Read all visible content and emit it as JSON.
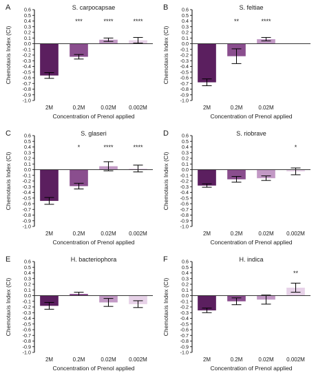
{
  "colors": {
    "bar_dark": "#5b1f5f",
    "bar_mid": "#8a4e8e",
    "bar_light": "#c299c5",
    "bar_pale": "#e7d2e8",
    "axis": "#000000",
    "zero_line": "#333333"
  },
  "chart_data": [
    {
      "type": "bar",
      "panel_letter": "A",
      "title": "S. carpocapsae",
      "xlabel": "Concentration of Prenol applied",
      "ylabel": "Chemotaxis Index (CI)",
      "ylim": [
        -1.0,
        0.6
      ],
      "yticks": [
        "0.6",
        "0.5",
        "0.4",
        "0.3",
        "0.2",
        "0.1",
        "0.0",
        "-0.1",
        "-0.2",
        "-0.3",
        "-0.4",
        "-0.5",
        "-0.6",
        "-0.7",
        "-0.8",
        "-0.9",
        "-1.0"
      ],
      "categories": [
        "2M",
        "0.2M",
        "0.02M",
        "0.002M"
      ],
      "values": [
        -0.56,
        -0.23,
        0.07,
        0.06
      ],
      "errors": [
        0.05,
        0.04,
        0.03,
        0.05
      ],
      "significance": [
        "",
        "***",
        "****",
        "****"
      ]
    },
    {
      "type": "bar",
      "panel_letter": "B",
      "title": "S. feltiae",
      "xlabel": "Concentration of Prenol applied",
      "ylabel": "Chemotaxis Index (CI)",
      "ylim": [
        -1.0,
        0.6
      ],
      "yticks": [
        "0.6",
        "0.5",
        "0.4",
        "0.3",
        "0.2",
        "0.1",
        "0.0",
        "-0.1",
        "-0.2",
        "-0.3",
        "-0.4",
        "-0.5",
        "-0.6",
        "-0.7",
        "-0.8",
        "-0.9",
        "-1.0"
      ],
      "categories": [
        "2M",
        "0.2M",
        "0.02M"
      ],
      "values": [
        -0.68,
        -0.22,
        0.08
      ],
      "errors": [
        0.06,
        0.13,
        0.03
      ],
      "significance": [
        "",
        "**",
        "****"
      ]
    },
    {
      "type": "bar",
      "panel_letter": "C",
      "title": "S. glaseri",
      "xlabel": "Concentration of Prenol applied",
      "ylabel": "Chemotaxis Index (CI)",
      "ylim": [
        -1.0,
        0.6
      ],
      "yticks": [
        "0.6",
        "0.5",
        "0.4",
        "0.3",
        "0.2",
        "0.1",
        "0.0",
        "-0.1",
        "-0.2",
        "-0.3",
        "-0.4",
        "-0.5",
        "-0.6",
        "-0.7",
        "-0.8",
        "-0.9",
        "-1.0"
      ],
      "categories": [
        "2M",
        "0.2M",
        "0.02M",
        "0.002M"
      ],
      "values": [
        -0.55,
        -0.29,
        0.06,
        0.02
      ],
      "errors": [
        0.06,
        0.05,
        0.08,
        0.06
      ],
      "significance": [
        "",
        "*",
        "****",
        "****"
      ]
    },
    {
      "type": "bar",
      "panel_letter": "D",
      "title": "S. riobrave",
      "xlabel": "Concentration of Prenol applied",
      "ylabel": "Chemotaxis Index (CI)",
      "ylim": [
        -1.0,
        0.6
      ],
      "yticks": [
        "0.6",
        "0.5",
        "0.4",
        "0.3",
        "0.2",
        "0.1",
        "0.0",
        "-0.1",
        "-0.2",
        "-0.3",
        "-0.4",
        "-0.5",
        "-0.6",
        "-0.7",
        "-0.8",
        "-0.9",
        "-1.0"
      ],
      "categories": [
        "2M",
        "0.2M",
        "0.02M",
        "0.002M"
      ],
      "values": [
        -0.28,
        -0.17,
        -0.15,
        -0.03
      ],
      "errors": [
        0.03,
        0.05,
        0.04,
        0.06
      ],
      "significance": [
        "",
        "",
        "",
        "*"
      ]
    },
    {
      "type": "bar",
      "panel_letter": "E",
      "title": "H. bacteriophora",
      "xlabel": "Concentration of Prenol applied",
      "ylabel": "Chemotaxis Index (CI)",
      "ylim": [
        -1.0,
        0.6
      ],
      "yticks": [
        "0.6",
        "0.5",
        "0.4",
        "0.3",
        "0.2",
        "0.1",
        "0.0",
        "-0.1",
        "-0.2",
        "-0.3",
        "-0.4",
        "-0.5",
        "-0.6",
        "-0.7",
        "-0.8",
        "-0.9",
        "-1.0"
      ],
      "categories": [
        "2M",
        "0.2M",
        "0.02M",
        "0.002M"
      ],
      "values": [
        -0.18,
        0.03,
        -0.12,
        -0.15
      ],
      "errors": [
        0.06,
        0.03,
        0.07,
        0.06
      ],
      "significance": [
        "",
        "",
        "",
        ""
      ]
    },
    {
      "type": "bar",
      "panel_letter": "F",
      "title": "H. indica",
      "xlabel": "Concentration of Prenol applied",
      "ylabel": "Chemotaxis Index (CI)",
      "ylim": [
        -1.0,
        0.6
      ],
      "yticks": [
        "0.6",
        "0.5",
        "0.4",
        "0.3",
        "0.2",
        "0.1",
        "0.0",
        "-0.1",
        "-0.2",
        "-0.3",
        "-0.4",
        "-0.5",
        "-0.6",
        "-0.7",
        "-0.8",
        "-0.9",
        "-1.0"
      ],
      "categories": [
        "2M",
        "0.2M",
        "0.02M",
        "0.002M"
      ],
      "values": [
        -0.26,
        -0.1,
        -0.07,
        0.14
      ],
      "errors": [
        0.04,
        0.06,
        0.08,
        0.08
      ],
      "significance": [
        "",
        "",
        "",
        "**"
      ]
    }
  ]
}
